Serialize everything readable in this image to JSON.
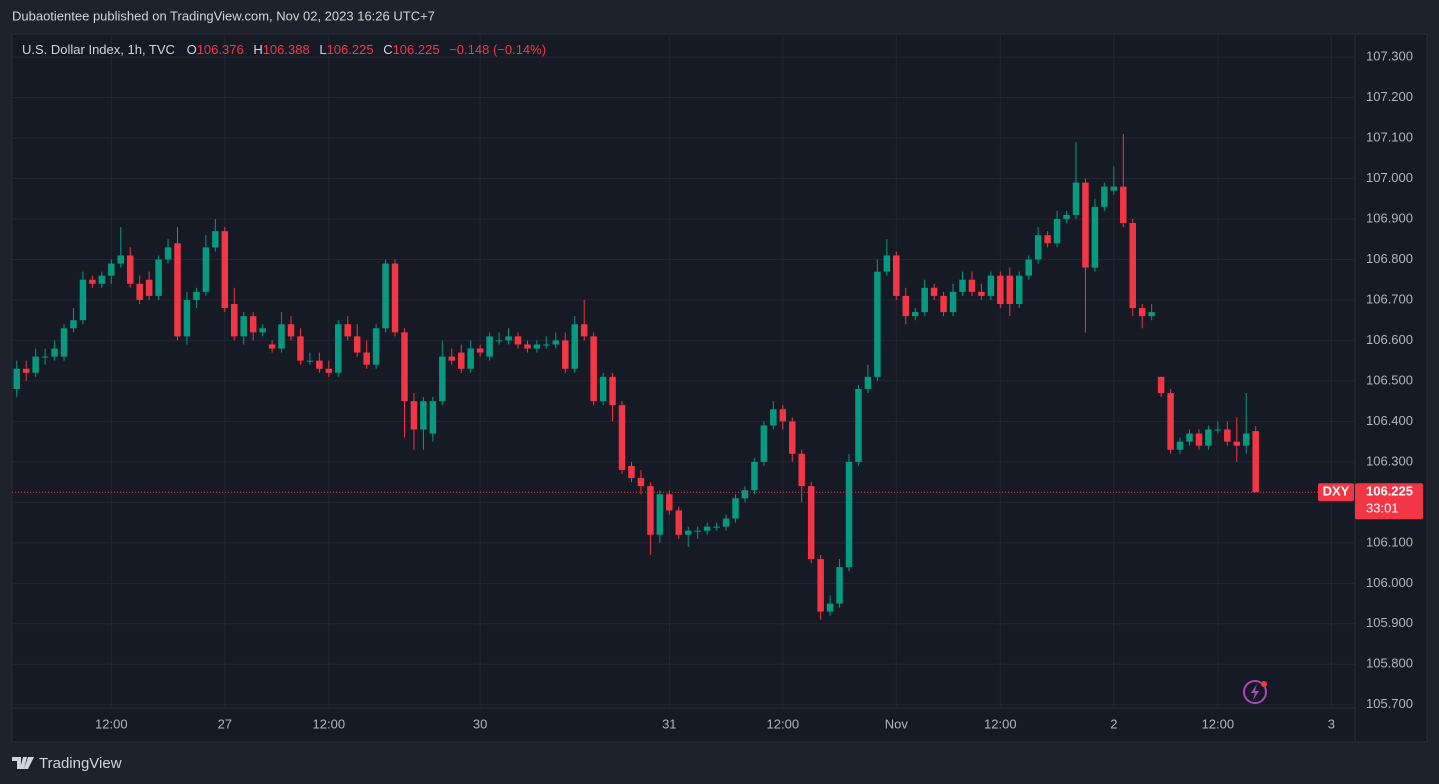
{
  "header": {
    "text": "Dubaotientee published on TradingView.com, Nov 02, 2023 16:26 UTC+7"
  },
  "chart_data": {
    "type": "candlestick",
    "symbol": "U.S. Dollar Index, 1h, TVC",
    "ohlc_labels": [
      "O",
      "H",
      "L",
      "C"
    ],
    "ohlc_values": [
      106.376,
      106.388,
      106.225,
      106.225
    ],
    "change": "−0.148 (−0.14%)",
    "colors": {
      "up": "#089981",
      "down": "#f23645"
    },
    "grid": true,
    "candles": [
      [
        106.48,
        106.55,
        106.46,
        106.53
      ],
      [
        106.53,
        106.55,
        106.5,
        106.52
      ],
      [
        106.52,
        106.58,
        106.51,
        106.56
      ],
      [
        106.56,
        106.58,
        106.54,
        106.56
      ],
      [
        106.56,
        106.6,
        106.55,
        106.58
      ],
      [
        106.56,
        106.64,
        106.55,
        106.63
      ],
      [
        106.63,
        106.68,
        106.62,
        106.65
      ],
      [
        106.65,
        106.77,
        106.64,
        106.75
      ],
      [
        106.75,
        106.76,
        106.73,
        106.74
      ],
      [
        106.74,
        106.77,
        106.73,
        106.76
      ],
      [
        106.76,
        106.8,
        106.74,
        106.79
      ],
      [
        106.79,
        106.88,
        106.78,
        106.81
      ],
      [
        106.81,
        106.83,
        106.73,
        106.74
      ],
      [
        106.74,
        106.76,
        106.69,
        106.7
      ],
      [
        106.75,
        106.77,
        106.7,
        106.71
      ],
      [
        106.71,
        106.81,
        106.7,
        106.8
      ],
      [
        106.8,
        106.85,
        106.79,
        106.83
      ],
      [
        106.84,
        106.88,
        106.6,
        106.61
      ],
      [
        106.61,
        106.72,
        106.59,
        106.7
      ],
      [
        106.7,
        106.73,
        106.68,
        106.72
      ],
      [
        106.72,
        106.86,
        106.71,
        106.83
      ],
      [
        106.83,
        106.9,
        106.82,
        106.87
      ],
      [
        106.87,
        106.88,
        106.67,
        106.68
      ],
      [
        106.69,
        106.73,
        106.6,
        106.61
      ],
      [
        106.61,
        106.67,
        106.59,
        106.66
      ],
      [
        106.66,
        106.67,
        106.6,
        106.62
      ],
      [
        106.62,
        106.64,
        106.61,
        106.63
      ],
      [
        106.59,
        106.6,
        106.57,
        106.58
      ],
      [
        106.58,
        106.67,
        106.57,
        106.64
      ],
      [
        106.64,
        106.66,
        106.6,
        106.61
      ],
      [
        106.61,
        106.63,
        106.54,
        106.55
      ],
      [
        106.55,
        106.57,
        106.54,
        106.55
      ],
      [
        106.55,
        106.57,
        106.52,
        106.53
      ],
      [
        106.53,
        106.55,
        106.51,
        106.52
      ],
      [
        106.52,
        106.65,
        106.51,
        106.64
      ],
      [
        106.64,
        106.66,
        106.6,
        106.61
      ],
      [
        106.61,
        106.64,
        106.56,
        106.57
      ],
      [
        106.57,
        106.6,
        106.53,
        106.54
      ],
      [
        106.54,
        106.64,
        106.53,
        106.63
      ],
      [
        106.63,
        106.8,
        106.62,
        106.79
      ],
      [
        106.79,
        106.8,
        106.61,
        106.62
      ],
      [
        106.62,
        106.63,
        106.36,
        106.45
      ],
      [
        106.45,
        106.47,
        106.33,
        106.38
      ],
      [
        106.38,
        106.46,
        106.33,
        106.45
      ],
      [
        106.37,
        106.46,
        106.35,
        106.45
      ],
      [
        106.45,
        106.6,
        106.44,
        106.56
      ],
      [
        106.56,
        106.58,
        106.54,
        106.55
      ],
      [
        106.57,
        106.59,
        106.52,
        106.53
      ],
      [
        106.53,
        106.6,
        106.52,
        106.58
      ],
      [
        106.58,
        106.59,
        106.56,
        106.57
      ],
      [
        106.56,
        106.62,
        106.55,
        106.61
      ],
      [
        106.6,
        106.62,
        106.59,
        106.6
      ],
      [
        106.6,
        106.63,
        106.59,
        106.61
      ],
      [
        106.61,
        106.62,
        106.58,
        106.59
      ],
      [
        106.59,
        106.6,
        106.57,
        106.58
      ],
      [
        106.58,
        106.6,
        106.57,
        106.59
      ],
      [
        106.59,
        106.61,
        106.58,
        106.59
      ],
      [
        106.59,
        106.62,
        106.58,
        106.6
      ],
      [
        106.6,
        106.62,
        106.52,
        106.53
      ],
      [
        106.53,
        106.66,
        106.52,
        106.64
      ],
      [
        106.64,
        106.7,
        106.6,
        106.61
      ],
      [
        106.61,
        106.62,
        106.44,
        106.45
      ],
      [
        106.45,
        106.52,
        106.44,
        106.51
      ],
      [
        106.51,
        106.52,
        106.4,
        106.44
      ],
      [
        106.44,
        106.45,
        106.27,
        106.28
      ],
      [
        106.29,
        106.3,
        106.25,
        106.26
      ],
      [
        106.26,
        106.28,
        106.22,
        106.24
      ],
      [
        106.24,
        106.25,
        106.07,
        106.12
      ],
      [
        106.12,
        106.23,
        106.1,
        106.22
      ],
      [
        106.22,
        106.23,
        106.17,
        106.18
      ],
      [
        106.18,
        106.19,
        106.11,
        106.12
      ],
      [
        106.12,
        106.14,
        106.09,
        106.13
      ],
      [
        106.13,
        106.14,
        106.11,
        106.13
      ],
      [
        106.13,
        106.15,
        106.12,
        106.14
      ],
      [
        106.14,
        106.15,
        106.13,
        106.14
      ],
      [
        106.14,
        106.17,
        106.13,
        106.16
      ],
      [
        106.16,
        106.22,
        106.15,
        106.21
      ],
      [
        106.21,
        106.24,
        106.2,
        106.23
      ],
      [
        106.23,
        106.31,
        106.22,
        106.3
      ],
      [
        106.3,
        106.4,
        106.29,
        106.39
      ],
      [
        106.39,
        106.45,
        106.38,
        106.43
      ],
      [
        106.43,
        106.44,
        106.38,
        106.4
      ],
      [
        106.4,
        106.41,
        106.3,
        106.32
      ],
      [
        106.32,
        106.33,
        106.2,
        106.24
      ],
      [
        106.24,
        106.25,
        106.05,
        106.06
      ],
      [
        106.06,
        106.07,
        105.91,
        105.93
      ],
      [
        105.93,
        105.97,
        105.92,
        105.95
      ],
      [
        105.95,
        106.06,
        105.94,
        106.04
      ],
      [
        106.04,
        106.32,
        106.03,
        106.3
      ],
      [
        106.3,
        106.49,
        106.29,
        106.48
      ],
      [
        106.48,
        106.54,
        106.47,
        106.51
      ],
      [
        106.51,
        106.8,
        106.5,
        106.77
      ],
      [
        106.77,
        106.85,
        106.76,
        106.81
      ],
      [
        106.81,
        106.82,
        106.7,
        106.71
      ],
      [
        106.71,
        106.73,
        106.64,
        106.66
      ],
      [
        106.66,
        106.68,
        106.65,
        106.67
      ],
      [
        106.67,
        106.75,
        106.66,
        106.73
      ],
      [
        106.73,
        106.74,
        106.7,
        106.71
      ],
      [
        106.71,
        106.72,
        106.66,
        106.67
      ],
      [
        106.67,
        106.74,
        106.66,
        106.72
      ],
      [
        106.72,
        106.77,
        106.71,
        106.75
      ],
      [
        106.75,
        106.77,
        106.71,
        106.72
      ],
      [
        106.72,
        106.74,
        106.7,
        106.71
      ],
      [
        106.71,
        106.77,
        106.7,
        106.76
      ],
      [
        106.76,
        106.77,
        106.68,
        106.69
      ],
      [
        106.76,
        106.78,
        106.66,
        106.69
      ],
      [
        106.69,
        106.77,
        106.68,
        106.76
      ],
      [
        106.76,
        106.81,
        106.75,
        106.8
      ],
      [
        106.8,
        106.88,
        106.79,
        106.86
      ],
      [
        106.86,
        106.87,
        106.83,
        106.84
      ],
      [
        106.84,
        106.92,
        106.83,
        106.9
      ],
      [
        106.9,
        106.92,
        106.89,
        106.91
      ],
      [
        106.91,
        107.09,
        106.9,
        106.99
      ],
      [
        106.99,
        107.0,
        106.62,
        106.78
      ],
      [
        106.78,
        106.95,
        106.77,
        106.93
      ],
      [
        106.93,
        106.99,
        106.92,
        106.98
      ],
      [
        106.97,
        107.03,
        106.96,
        106.98
      ],
      [
        106.98,
        107.11,
        106.88,
        106.89
      ],
      [
        106.89,
        106.9,
        106.66,
        106.68
      ],
      [
        106.68,
        106.69,
        106.63,
        106.66
      ],
      [
        106.66,
        106.69,
        106.65,
        106.67
      ],
      [
        106.51,
        106.51,
        106.46,
        106.47
      ],
      [
        106.47,
        106.48,
        106.32,
        106.33
      ],
      [
        106.33,
        106.36,
        106.32,
        106.35
      ],
      [
        106.35,
        106.38,
        106.34,
        106.37
      ],
      [
        106.37,
        106.38,
        106.33,
        106.34
      ],
      [
        106.34,
        106.39,
        106.33,
        106.38
      ],
      [
        106.38,
        106.4,
        106.37,
        106.38
      ],
      [
        106.38,
        106.4,
        106.34,
        106.35
      ],
      [
        106.35,
        106.41,
        106.3,
        106.34
      ],
      [
        106.34,
        106.47,
        106.32,
        106.37
      ],
      [
        106.376,
        106.388,
        106.225,
        106.225
      ]
    ],
    "xlim": [
      -0.5,
      141.5
    ],
    "xticks": [
      {
        "value": 10,
        "label": "12:00"
      },
      {
        "value": 22,
        "label": "27"
      },
      {
        "value": 33,
        "label": "12:00"
      },
      {
        "value": 49,
        "label": "30"
      },
      {
        "value": 69,
        "label": "31"
      },
      {
        "value": 81,
        "label": "12:00"
      },
      {
        "value": 93,
        "label": "Nov"
      },
      {
        "value": 104,
        "label": "12:00"
      },
      {
        "value": 116,
        "label": "2"
      },
      {
        "value": 127,
        "label": "12:00"
      },
      {
        "value": 139,
        "label": "3"
      }
    ],
    "ylim": [
      105.608,
      107.357
    ],
    "yticks": [
      {
        "value": 105.7,
        "label": "105.700"
      },
      {
        "value": 105.8,
        "label": "105.800"
      },
      {
        "value": 105.9,
        "label": "105.900"
      },
      {
        "value": 106.0,
        "label": "106.000"
      },
      {
        "value": 106.1,
        "label": "106.100"
      },
      {
        "value": 106.2,
        "label": "106.200"
      },
      {
        "value": 106.3,
        "label": "106.300"
      },
      {
        "value": 106.4,
        "label": "106.400"
      },
      {
        "value": 106.5,
        "label": "106.500"
      },
      {
        "value": 106.6,
        "label": "106.600"
      },
      {
        "value": 106.7,
        "label": "106.700"
      },
      {
        "value": 106.8,
        "label": "106.800"
      },
      {
        "value": 106.9,
        "label": "106.900"
      },
      {
        "value": 107.0,
        "label": "107.000"
      },
      {
        "value": 107.1,
        "label": "107.100"
      },
      {
        "value": 107.2,
        "label": "107.200"
      },
      {
        "value": 107.3,
        "label": "107.300"
      }
    ],
    "last_price": {
      "ticker": "DXY",
      "value": 106.225,
      "countdown": "33:01"
    }
  },
  "footer": {
    "brand": "TradingView"
  }
}
